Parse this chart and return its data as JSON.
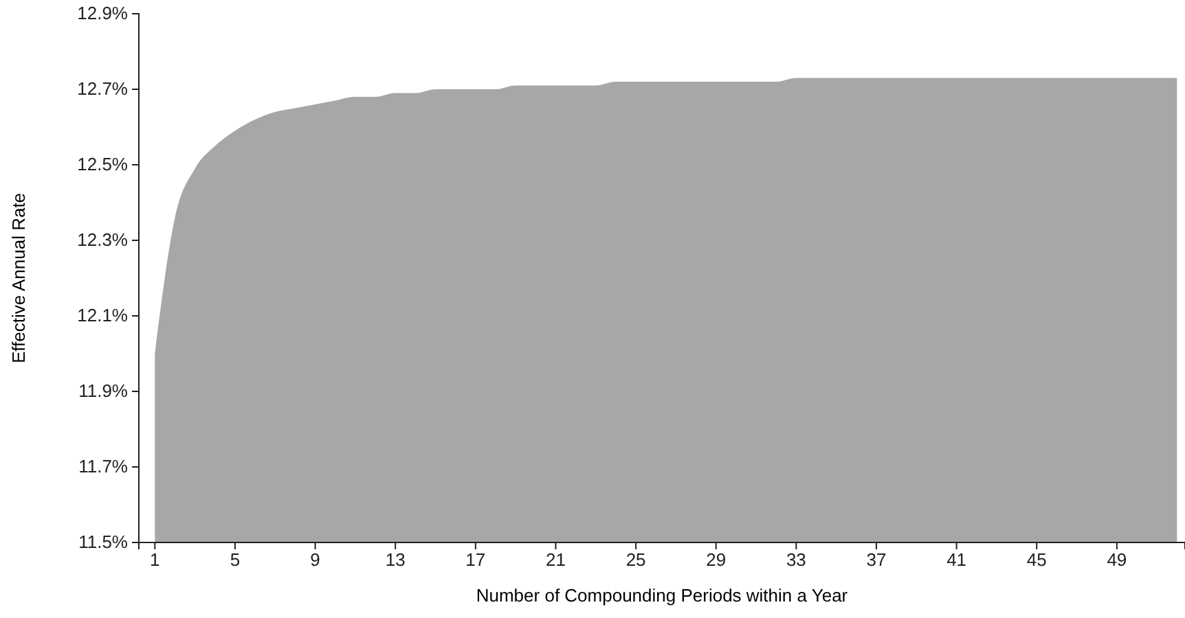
{
  "chart_data": {
    "type": "area",
    "xlabel": "Number of Compounding Periods within a Year",
    "ylabel": "Effective Annual Rate",
    "x": [
      1,
      2,
      3,
      4,
      5,
      6,
      7,
      8,
      9,
      10,
      11,
      12,
      13,
      14,
      15,
      16,
      17,
      18,
      19,
      20,
      21,
      22,
      23,
      24,
      25,
      26,
      27,
      28,
      29,
      30,
      31,
      32,
      33,
      34,
      35,
      36,
      37,
      38,
      39,
      40,
      41,
      42,
      43,
      44,
      45,
      46,
      47,
      48,
      49,
      50,
      51,
      52
    ],
    "series": [
      {
        "color": "#a7a7aa",
        "values": [
          12.0,
          12.36,
          12.49,
          12.55,
          12.59,
          12.62,
          12.64,
          12.65,
          12.66,
          12.67,
          12.68,
          12.68,
          12.69,
          12.69,
          12.7,
          12.7,
          12.7,
          12.7,
          12.71,
          12.71,
          12.71,
          12.71,
          12.71,
          12.72,
          12.72,
          12.72,
          12.72,
          12.72,
          12.72,
          12.72,
          12.72,
          12.72,
          12.73,
          12.73,
          12.73,
          12.73,
          12.73,
          12.73,
          12.73,
          12.73,
          12.73,
          12.73,
          12.73,
          12.73,
          12.73,
          12.73,
          12.73,
          12.73,
          12.73,
          12.73,
          12.73,
          12.73
        ]
      }
    ],
    "xlim": [
      0.2,
      52.4
    ],
    "xticks": [
      1,
      5,
      9,
      13,
      17,
      21,
      25,
      29,
      33,
      37,
      41,
      45,
      49
    ],
    "ylim": [
      11.5,
      12.9
    ],
    "yticks": [
      {
        "value": 11.5,
        "label": "11.5%"
      },
      {
        "value": 11.7,
        "label": "11.7%"
      },
      {
        "value": 11.9,
        "label": "11.9%"
      },
      {
        "value": 12.1,
        "label": "12.1%"
      },
      {
        "value": 12.3,
        "label": "12.3%"
      },
      {
        "value": 12.5,
        "label": "12.5%"
      },
      {
        "value": 12.7,
        "label": "12.7%"
      },
      {
        "value": 12.9,
        "label": "12.9%"
      }
    ],
    "grid": false
  }
}
